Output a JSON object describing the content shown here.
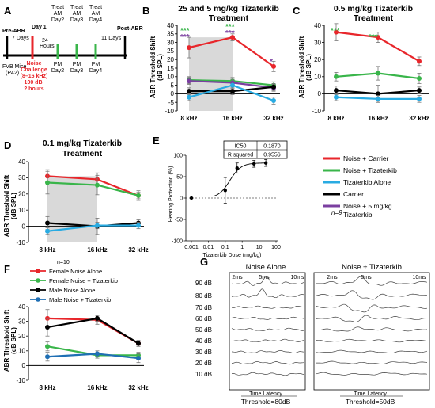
{
  "colors": {
    "red": "#e8262b",
    "green": "#39b54a",
    "cyan": "#29abe2",
    "black": "#000000",
    "purple": "#7b3fa0",
    "blue": "#1f6fb4",
    "shade": "#d9d9d9",
    "timeline_green": "#39b54a"
  },
  "panelA": {
    "label": "A",
    "pre_abr": "Pre-ABR",
    "day1": "Day 1",
    "seven_days": "7 Days",
    "twenty_four": "24",
    "hours": "Hours",
    "treat_am": [
      "Treat\nAM\nDay2",
      "Treat\nAM\nDay3",
      "Treat\nAM\nDay4"
    ],
    "treat_am_lines": [
      [
        "Treat",
        "AM",
        "Day2"
      ],
      [
        "Treat",
        "AM",
        "Day3"
      ],
      [
        "Treat",
        "AM",
        "Day4"
      ]
    ],
    "pm_lines": [
      [
        "PM",
        "Day2"
      ],
      [
        "PM",
        "Day3"
      ],
      [
        "PM",
        "Day4"
      ]
    ],
    "eleven_days": "11 Days",
    "post_abr": "Post-ABR",
    "fvb": [
      "FVB Mice",
      "(P42)"
    ],
    "noise": [
      "Noise",
      "Challenge",
      "(8–16 kHz)",
      "100 dB,",
      "2 hours"
    ]
  },
  "panelB": {
    "label": "B",
    "title_lines": [
      "25 and 5 mg/kg Tizaterkib",
      "Treatment"
    ],
    "ylabel_lines": [
      "ABR Threshold Shift",
      "(dB SPL)"
    ],
    "asterisks": [
      "***",
      "***",
      "***",
      "***",
      "*"
    ]
  },
  "panelC": {
    "label": "C",
    "title_lines": [
      "0.5 mg/kg Tizaterkib",
      "Treatment"
    ],
    "ylabel_lines": [
      "ABR Threshold Shift",
      "(dB SPL)"
    ],
    "asterisks": [
      "***",
      "***"
    ]
  },
  "panelD": {
    "label": "D",
    "title_lines": [
      "0.1 mg/kg Tizaterkib",
      "Treatment"
    ],
    "ylabel_lines": [
      "ABR Threshold Shift",
      "(dB SPL)"
    ]
  },
  "panelE": {
    "label": "E",
    "ylabel": "Hearing Protection (%)",
    "xlabel": "Tizaterkib Dose (mg/kg)",
    "table": [
      [
        "IC50",
        "0.1870"
      ],
      [
        "R squared",
        "0.9556"
      ]
    ],
    "n_label": "n=9"
  },
  "legendE": [
    {
      "label": "Noise + Carrier",
      "color": "#e8262b"
    },
    {
      "label": "Noise + Tizaterkib",
      "color": "#39b54a"
    },
    {
      "label": "Tizaterkib Alone",
      "color": "#29abe2"
    },
    {
      "label": "Carrier",
      "color": "#000000"
    },
    {
      "label": "Noise + 5 mg/kg",
      "label2": "Tizaterkib",
      "color": "#7b3fa0"
    }
  ],
  "panelF": {
    "label": "F",
    "n_label": "n=10",
    "ylabel_lines": [
      "ABR Threshold Shift",
      "(dB SPL)"
    ],
    "legend": [
      {
        "label": "Female Noise Alone",
        "color": "#e8262b"
      },
      {
        "label": "Female Noise + Tizaterkib",
        "color": "#39b54a"
      },
      {
        "label": "Male Noise Alone",
        "color": "#000000"
      },
      {
        "label": "Male Noise + Tizaterkib",
        "color": "#1f6fb4"
      }
    ]
  },
  "panelG": {
    "label": "G",
    "left_title": "Noise Alone",
    "right_title": "Noise + Tizaterkib",
    "time_ticks": [
      "2ms",
      "5ms",
      "10ms"
    ],
    "db_labels": [
      "90 dB",
      "80 dB",
      "70 dB",
      "60 dB",
      "50 dB",
      "40 dB",
      "30 dB",
      "20 dB",
      "10 dB"
    ],
    "time_label": "Time Latency",
    "left_threshold": "Threshold=80dB",
    "right_threshold": "Threshold=50dB"
  },
  "chart_data": [
    {
      "id": "B",
      "type": "line",
      "title": "25 and 5 mg/kg Tizaterkib Treatment",
      "ylabel": "ABR Threshold Shift (dB SPL)",
      "categories": [
        "8 kHz",
        "16 kHz",
        "32 kHz"
      ],
      "ylim": [
        -10,
        40
      ],
      "yticks": [
        -10,
        -5,
        0,
        5,
        10,
        15,
        20,
        25,
        30,
        35,
        40
      ],
      "series": [
        {
          "color": "#e8262b",
          "values": [
            27,
            33,
            16
          ],
          "err": [
            6,
            2,
            3
          ]
        },
        {
          "color": "#39b54a",
          "values": [
            8,
            7.5,
            5
          ],
          "err": [
            2,
            2,
            2
          ]
        },
        {
          "color": "#7b3fa0",
          "values": [
            7.5,
            6.5,
            3.5
          ],
          "err": [
            2,
            2,
            2
          ]
        },
        {
          "color": "#000000",
          "values": [
            1.5,
            1.5,
            4
          ],
          "err": [
            2,
            2,
            2
          ]
        },
        {
          "color": "#29abe2",
          "values": [
            -2,
            5,
            -4
          ],
          "err": [
            2,
            2,
            2
          ]
        }
      ]
    },
    {
      "id": "C",
      "type": "line",
      "title": "0.5 mg/kg Tizaterkib Treatment",
      "ylabel": "ABR Threshold Shift (dB SPL)",
      "categories": [
        "8 kHz",
        "16 kHz",
        "32 kHz"
      ],
      "ylim": [
        -10,
        40
      ],
      "yticks": [
        -10,
        0,
        10,
        20,
        30,
        40
      ],
      "series": [
        {
          "color": "#e8262b",
          "values": [
            36,
            33,
            19
          ],
          "err": [
            5,
            3,
            2.5
          ]
        },
        {
          "color": "#39b54a",
          "values": [
            10,
            12,
            9
          ],
          "err": [
            2.5,
            4,
            3
          ]
        },
        {
          "color": "#000000",
          "values": [
            2,
            0,
            2
          ],
          "err": [
            2.5,
            5,
            2
          ]
        },
        {
          "color": "#29abe2",
          "values": [
            -2,
            -3,
            -3
          ],
          "err": [
            2,
            2,
            2
          ]
        }
      ]
    },
    {
      "id": "D",
      "type": "line",
      "title": "0.1 mg/kg Tizaterkib Treatment",
      "ylabel": "ABR Threshold Shift (dB SPL)",
      "categories": [
        "8 kHz",
        "16 kHz",
        "32 kHz"
      ],
      "ylim": [
        -10,
        40
      ],
      "yticks": [
        -10,
        0,
        10,
        20,
        30,
        40
      ],
      "series": [
        {
          "color": "#e8262b",
          "values": [
            31,
            29,
            19
          ],
          "err": [
            4,
            4,
            2
          ]
        },
        {
          "color": "#39b54a",
          "values": [
            27,
            25.5,
            19
          ],
          "err": [
            7,
            6,
            3
          ]
        },
        {
          "color": "#000000",
          "values": [
            2,
            0,
            2
          ],
          "err": [
            4,
            5,
            2
          ]
        },
        {
          "color": "#29abe2",
          "values": [
            -3,
            0.5,
            0.5
          ],
          "err": [
            2,
            2,
            2
          ]
        }
      ]
    },
    {
      "id": "E",
      "type": "scatter",
      "xlabel": "Tizaterkib Dose (mg/kg)",
      "ylabel": "Hearing Protection (%)",
      "xscale": "log",
      "xticks": [
        "0.001",
        "0.01",
        "0.1",
        "1",
        "10",
        "100"
      ],
      "xtick_values": [
        0.001,
        0.01,
        0.1,
        1,
        10,
        100
      ],
      "yticks": [
        -100,
        -50,
        0,
        50,
        100
      ],
      "ylim": [
        -100,
        100
      ],
      "points": [
        {
          "x": 0.001,
          "y": 0,
          "err": 0
        },
        {
          "x": 0.1,
          "y": 18,
          "err": 30
        },
        {
          "x": 0.5,
          "y": 70,
          "err": 12
        },
        {
          "x": 5,
          "y": 80,
          "err": 8
        },
        {
          "x": 25,
          "y": 82,
          "err": 8
        }
      ],
      "fit": {
        "ic50": 0.187,
        "bottom": 0,
        "top": 82,
        "hill": 1.3
      }
    },
    {
      "id": "F",
      "type": "line",
      "ylabel": "ABR Threshold Shift (dB SPL)",
      "categories": [
        "8 kHz",
        "16 kHz",
        "32 kHz"
      ],
      "ylim": [
        -10,
        40
      ],
      "yticks": [
        -10,
        0,
        10,
        20,
        30,
        40
      ],
      "series": [
        {
          "name": "Female Noise Alone",
          "color": "#e8262b",
          "values": [
            32,
            31,
            15
          ],
          "err": [
            6,
            3,
            2
          ]
        },
        {
          "name": "Female Noise + Tizaterkib",
          "color": "#39b54a",
          "values": [
            13,
            7,
            7
          ],
          "err": [
            3,
            2,
            2
          ]
        },
        {
          "name": "Male Noise Alone",
          "color": "#000000",
          "values": [
            26,
            32,
            15
          ],
          "err": [
            6,
            2,
            2
          ]
        },
        {
          "name": "Male Noise + Tizaterkib",
          "color": "#1f6fb4",
          "values": [
            6,
            8,
            5
          ],
          "err": [
            3,
            2,
            3
          ]
        }
      ]
    }
  ]
}
